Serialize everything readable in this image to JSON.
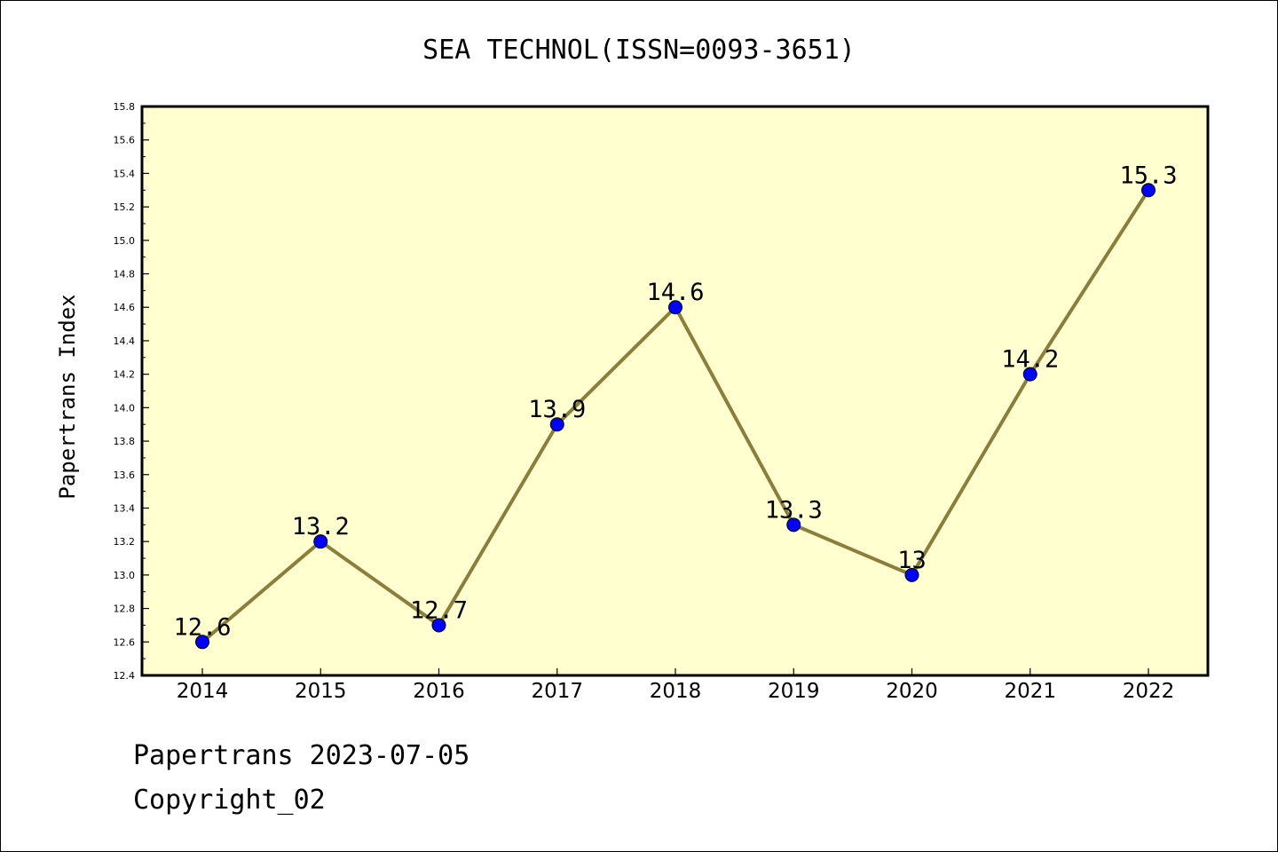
{
  "chart_data": {
    "type": "line",
    "title": "SEA TECHNOL(ISSN=0093-3651)",
    "xlabel": "",
    "ylabel": "Papertrans Index",
    "categories": [
      "2014",
      "2015",
      "2016",
      "2017",
      "2018",
      "2019",
      "2020",
      "2021",
      "2022"
    ],
    "series": [
      {
        "values": [
          12.6,
          13.2,
          12.7,
          13.9,
          14.6,
          13.3,
          13.0,
          14.2,
          15.3
        ],
        "labels": [
          "12.6",
          "13.2",
          "12.7",
          "13.9",
          "14.6",
          "13.3",
          "13",
          "14.2",
          "15.3"
        ]
      }
    ],
    "ylim": [
      12.4,
      15.8
    ],
    "yticks": [
      "12.4",
      "12.6",
      "12.8",
      "13.0",
      "13.2",
      "13.4",
      "13.6",
      "13.8",
      "14.0",
      "14.2",
      "14.4",
      "14.6",
      "14.8",
      "15.0",
      "15.2",
      "15.4",
      "15.6",
      "15.8"
    ],
    "grid": false,
    "legend": "none",
    "colors": {
      "plot_background": "#ffffd0",
      "line": "#8b7d3a",
      "marker": "#0000ff"
    }
  },
  "footer": {
    "line1": "Papertrans 2023-07-05",
    "line2": "Copyright_02"
  }
}
